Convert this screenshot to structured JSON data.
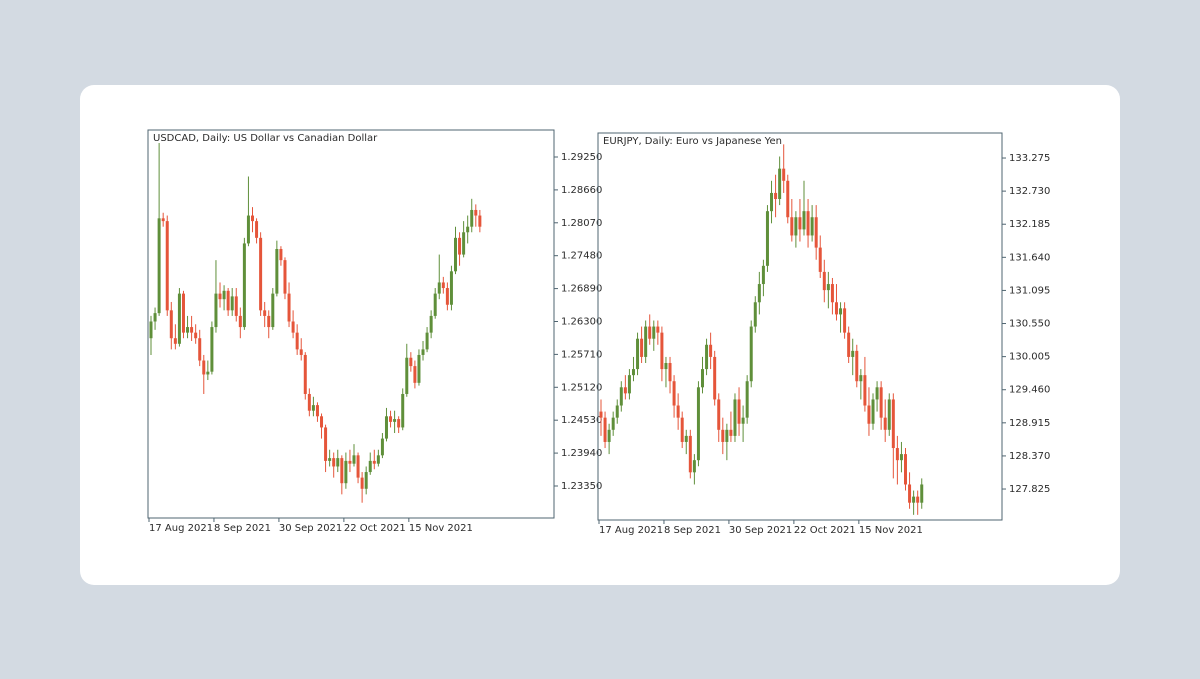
{
  "chart_data": [
    {
      "type": "candlestick",
      "title": "USDCAD, Daily:  US Dollar vs Canadian Dollar",
      "categories": [
        "17 Aug 2021",
        null,
        null,
        null,
        null,
        null,
        null,
        null,
        null,
        null,
        null,
        null,
        null,
        null,
        null,
        null,
        "8 Sep 2021",
        null,
        null,
        null,
        null,
        null,
        null,
        null,
        null,
        null,
        null,
        null,
        null,
        null,
        null,
        null,
        "30 Sep 2021",
        null,
        null,
        null,
        null,
        null,
        null,
        null,
        null,
        null,
        null,
        null,
        null,
        null,
        null,
        null,
        "22 Oct 2021",
        null,
        null,
        null,
        null,
        null,
        null,
        null,
        null,
        null,
        null,
        null,
        null,
        null,
        null,
        null,
        "15 Nov 2021",
        null,
        null,
        null,
        null,
        null,
        null,
        null,
        null,
        null,
        null,
        null,
        null,
        null,
        null,
        null,
        null,
        null
      ],
      "candles": [
        [
          1.26,
          1.264,
          1.257,
          1.263
        ],
        [
          1.263,
          1.2655,
          1.2615,
          1.2645
        ],
        [
          1.2645,
          1.295,
          1.264,
          1.2815
        ],
        [
          1.2815,
          1.2825,
          1.28,
          1.281
        ],
        [
          1.281,
          1.282,
          1.264,
          1.265
        ],
        [
          1.265,
          1.2665,
          1.258,
          1.26
        ],
        [
          1.26,
          1.2625,
          1.258,
          1.259
        ],
        [
          1.259,
          1.269,
          1.2585,
          1.268
        ],
        [
          1.268,
          1.2685,
          1.26,
          1.261
        ],
        [
          1.261,
          1.264,
          1.26,
          1.262
        ],
        [
          1.262,
          1.264,
          1.2595,
          1.261
        ],
        [
          1.261,
          1.2625,
          1.259,
          1.26
        ],
        [
          1.26,
          1.2615,
          1.255,
          1.256
        ],
        [
          1.256,
          1.257,
          1.25,
          1.2535
        ],
        [
          1.2535,
          1.256,
          1.2525,
          1.254
        ],
        [
          1.254,
          1.263,
          1.2535,
          1.262
        ],
        [
          1.262,
          1.274,
          1.261,
          1.268
        ],
        [
          1.268,
          1.27,
          1.2655,
          1.267
        ],
        [
          1.267,
          1.2695,
          1.265,
          1.2685
        ],
        [
          1.2685,
          1.269,
          1.264,
          1.265
        ],
        [
          1.265,
          1.269,
          1.264,
          1.2675
        ],
        [
          1.2675,
          1.269,
          1.263,
          1.264
        ],
        [
          1.264,
          1.2655,
          1.26,
          1.262
        ],
        [
          1.262,
          1.278,
          1.2615,
          1.277
        ],
        [
          1.277,
          1.289,
          1.2765,
          1.282
        ],
        [
          1.282,
          1.2835,
          1.279,
          1.281
        ],
        [
          1.281,
          1.2815,
          1.277,
          1.278
        ],
        [
          1.278,
          1.279,
          1.264,
          1.265
        ],
        [
          1.265,
          1.2665,
          1.262,
          1.264
        ],
        [
          1.264,
          1.265,
          1.26,
          1.262
        ],
        [
          1.262,
          1.269,
          1.2615,
          1.268
        ],
        [
          1.268,
          1.2775,
          1.2675,
          1.276
        ],
        [
          1.276,
          1.2765,
          1.273,
          1.274
        ],
        [
          1.274,
          1.2745,
          1.267,
          1.268
        ],
        [
          1.268,
          1.27,
          1.262,
          1.263
        ],
        [
          1.263,
          1.265,
          1.26,
          1.261
        ],
        [
          1.261,
          1.2625,
          1.257,
          1.258
        ],
        [
          1.258,
          1.26,
          1.256,
          1.257
        ],
        [
          1.257,
          1.2575,
          1.249,
          1.25
        ],
        [
          1.25,
          1.251,
          1.246,
          1.247
        ],
        [
          1.247,
          1.2495,
          1.246,
          1.248
        ],
        [
          1.248,
          1.2485,
          1.245,
          1.246
        ],
        [
          1.246,
          1.2465,
          1.242,
          1.244
        ],
        [
          1.244,
          1.2445,
          1.236,
          1.238
        ],
        [
          1.238,
          1.24,
          1.237,
          1.2385
        ],
        [
          1.2385,
          1.2395,
          1.235,
          1.237
        ],
        [
          1.237,
          1.24,
          1.236,
          1.2385
        ],
        [
          1.2385,
          1.239,
          1.232,
          1.234
        ],
        [
          1.234,
          1.2395,
          1.233,
          1.238
        ],
        [
          1.238,
          1.24,
          1.236,
          1.2375
        ],
        [
          1.2375,
          1.241,
          1.237,
          1.239
        ],
        [
          1.239,
          1.2395,
          1.234,
          1.235
        ],
        [
          1.235,
          1.236,
          1.2305,
          1.233
        ],
        [
          1.233,
          1.237,
          1.232,
          1.236
        ],
        [
          1.236,
          1.2395,
          1.2355,
          1.238
        ],
        [
          1.238,
          1.24,
          1.2365,
          1.2375
        ],
        [
          1.2375,
          1.24,
          1.237,
          1.239
        ],
        [
          1.239,
          1.243,
          1.2385,
          1.242
        ],
        [
          1.242,
          1.2475,
          1.2415,
          1.246
        ],
        [
          1.246,
          1.247,
          1.244,
          1.245
        ],
        [
          1.245,
          1.247,
          1.243,
          1.2455
        ],
        [
          1.2455,
          1.246,
          1.243,
          1.244
        ],
        [
          1.244,
          1.251,
          1.2435,
          1.25
        ],
        [
          1.25,
          1.259,
          1.2495,
          1.2565
        ],
        [
          1.2565,
          1.2575,
          1.254,
          1.255
        ],
        [
          1.255,
          1.256,
          1.251,
          1.252
        ],
        [
          1.252,
          1.258,
          1.2515,
          1.257
        ],
        [
          1.257,
          1.2595,
          1.256,
          1.258
        ],
        [
          1.258,
          1.262,
          1.2575,
          1.261
        ],
        [
          1.261,
          1.265,
          1.26,
          1.264
        ],
        [
          1.264,
          1.269,
          1.2635,
          1.268
        ],
        [
          1.268,
          1.275,
          1.267,
          1.27
        ],
        [
          1.27,
          1.271,
          1.268,
          1.269
        ],
        [
          1.269,
          1.27,
          1.265,
          1.266
        ],
        [
          1.266,
          1.273,
          1.265,
          1.272
        ],
        [
          1.272,
          1.28,
          1.2715,
          1.278
        ],
        [
          1.278,
          1.279,
          1.273,
          1.275
        ],
        [
          1.275,
          1.281,
          1.2745,
          1.279
        ],
        [
          1.279,
          1.282,
          1.277,
          1.28
        ],
        [
          1.28,
          1.285,
          1.279,
          1.283
        ],
        [
          1.283,
          1.284,
          1.28,
          1.282
        ],
        [
          1.282,
          1.283,
          1.279,
          1.28
        ]
      ],
      "ylim": [
        1.22776,
        1.29734
      ],
      "yticks": [
        {
          "value": 1.2925,
          "label": "1.29250"
        },
        {
          "value": 1.2866,
          "label": "1.28660"
        },
        {
          "value": 1.2807,
          "label": "1.28070"
        },
        {
          "value": 1.2748,
          "label": "1.27480"
        },
        {
          "value": 1.2689,
          "label": "1.26890"
        },
        {
          "value": 1.263,
          "label": "1.26300"
        },
        {
          "value": 1.2571,
          "label": "1.25710"
        },
        {
          "value": 1.2512,
          "label": "1.25120"
        },
        {
          "value": 1.2453,
          "label": "1.24530"
        },
        {
          "value": 1.2394,
          "label": "1.23940"
        },
        {
          "value": 1.2335,
          "label": "1.23350"
        }
      ],
      "up_color": "#5f8f3a",
      "down_color": "#e5553a"
    },
    {
      "type": "candlestick",
      "title": "EURJPY, Daily:  Euro vs Japanese Yen",
      "categories": [
        "17 Aug 2021",
        null,
        null,
        null,
        null,
        null,
        null,
        null,
        null,
        null,
        null,
        null,
        null,
        null,
        null,
        null,
        "8 Sep 2021",
        null,
        null,
        null,
        null,
        null,
        null,
        null,
        null,
        null,
        null,
        null,
        null,
        null,
        null,
        null,
        "30 Sep 2021",
        null,
        null,
        null,
        null,
        null,
        null,
        null,
        null,
        null,
        null,
        null,
        null,
        null,
        null,
        null,
        "22 Oct 2021",
        null,
        null,
        null,
        null,
        null,
        null,
        null,
        null,
        null,
        null,
        null,
        null,
        null,
        null,
        null,
        "15 Nov 2021",
        null,
        null,
        null,
        null,
        null,
        null,
        null,
        null,
        null,
        null,
        null,
        null,
        null,
        null,
        null
      ],
      "candles": [
        [
          129.1,
          129.3,
          128.7,
          129.0
        ],
        [
          129.0,
          129.1,
          128.5,
          128.6
        ],
        [
          128.6,
          128.9,
          128.4,
          128.8
        ],
        [
          128.8,
          129.1,
          128.7,
          129.0
        ],
        [
          129.0,
          129.3,
          128.9,
          129.2
        ],
        [
          129.2,
          129.6,
          129.1,
          129.5
        ],
        [
          129.5,
          129.7,
          129.3,
          129.4
        ],
        [
          129.4,
          129.8,
          129.3,
          129.7
        ],
        [
          129.7,
          130.0,
          129.6,
          129.8
        ],
        [
          129.8,
          130.4,
          129.7,
          130.3
        ],
        [
          130.3,
          130.5,
          129.9,
          130.0
        ],
        [
          130.0,
          130.6,
          129.9,
          130.5
        ],
        [
          130.5,
          130.7,
          130.2,
          130.3
        ],
        [
          130.3,
          130.6,
          130.1,
          130.5
        ],
        [
          130.5,
          130.6,
          130.2,
          130.4
        ],
        [
          130.4,
          130.5,
          129.6,
          129.8
        ],
        [
          129.8,
          130.0,
          129.5,
          129.9
        ],
        [
          129.9,
          130.0,
          129.4,
          129.6
        ],
        [
          129.6,
          129.7,
          129.0,
          129.2
        ],
        [
          129.2,
          129.4,
          128.8,
          129.0
        ],
        [
          129.0,
          129.1,
          128.5,
          128.6
        ],
        [
          128.6,
          128.8,
          128.4,
          128.7
        ],
        [
          128.7,
          128.8,
          128.0,
          128.1
        ],
        [
          128.1,
          128.4,
          127.9,
          128.3
        ],
        [
          128.3,
          129.6,
          128.2,
          129.5
        ],
        [
          129.5,
          130.0,
          129.4,
          129.8
        ],
        [
          129.8,
          130.3,
          129.7,
          130.2
        ],
        [
          130.2,
          130.4,
          129.8,
          130.0
        ],
        [
          130.0,
          130.1,
          129.2,
          129.3
        ],
        [
          129.3,
          129.4,
          128.6,
          128.8
        ],
        [
          128.8,
          129.0,
          128.4,
          128.6
        ],
        [
          128.6,
          128.9,
          128.3,
          128.8
        ],
        [
          128.8,
          129.1,
          128.6,
          128.7
        ],
        [
          128.7,
          129.4,
          128.6,
          129.3
        ],
        [
          129.3,
          129.5,
          128.7,
          128.9
        ],
        [
          128.9,
          129.2,
          128.6,
          129.0
        ],
        [
          129.0,
          129.7,
          128.9,
          129.6
        ],
        [
          129.6,
          130.6,
          129.5,
          130.5
        ],
        [
          130.5,
          131.0,
          130.4,
          130.9
        ],
        [
          130.9,
          131.4,
          130.7,
          131.2
        ],
        [
          131.2,
          131.6,
          131.0,
          131.5
        ],
        [
          131.5,
          132.5,
          131.4,
          132.4
        ],
        [
          132.4,
          132.9,
          132.2,
          132.7
        ],
        [
          132.7,
          133.0,
          132.3,
          132.6
        ],
        [
          132.6,
          133.3,
          132.5,
          133.1
        ],
        [
          133.1,
          133.5,
          132.7,
          132.9
        ],
        [
          132.9,
          133.0,
          132.2,
          132.3
        ],
        [
          132.3,
          132.6,
          131.9,
          132.0
        ],
        [
          132.0,
          132.4,
          131.8,
          132.3
        ],
        [
          132.3,
          132.6,
          131.9,
          132.1
        ],
        [
          132.1,
          132.9,
          132.0,
          132.4
        ],
        [
          132.4,
          132.6,
          131.8,
          132.0
        ],
        [
          132.0,
          132.5,
          131.9,
          132.3
        ],
        [
          132.3,
          132.5,
          131.6,
          131.8
        ],
        [
          131.8,
          132.0,
          131.3,
          131.4
        ],
        [
          131.4,
          131.6,
          130.9,
          131.1
        ],
        [
          131.1,
          131.4,
          130.8,
          131.2
        ],
        [
          131.2,
          131.3,
          130.7,
          130.9
        ],
        [
          130.9,
          131.2,
          130.6,
          130.7
        ],
        [
          130.7,
          130.9,
          130.4,
          130.8
        ],
        [
          130.8,
          130.9,
          130.3,
          130.4
        ],
        [
          130.4,
          130.5,
          129.9,
          130.0
        ],
        [
          130.0,
          130.3,
          129.7,
          130.1
        ],
        [
          130.1,
          130.2,
          129.5,
          129.6
        ],
        [
          129.6,
          129.8,
          129.3,
          129.7
        ],
        [
          129.7,
          130.0,
          129.1,
          129.2
        ],
        [
          129.2,
          129.5,
          128.7,
          128.9
        ],
        [
          128.9,
          129.4,
          128.8,
          129.3
        ],
        [
          129.3,
          129.6,
          129.1,
          129.5
        ],
        [
          129.5,
          129.6,
          128.8,
          129.0
        ],
        [
          129.0,
          129.3,
          128.6,
          128.8
        ],
        [
          128.8,
          129.4,
          128.7,
          129.3
        ],
        [
          129.3,
          129.4,
          128.0,
          128.5
        ],
        [
          128.5,
          128.7,
          127.9,
          128.3
        ],
        [
          128.3,
          128.6,
          128.1,
          128.4
        ],
        [
          128.4,
          128.5,
          127.8,
          127.9
        ],
        [
          127.9,
          128.1,
          127.5,
          127.6
        ],
        [
          127.6,
          127.8,
          127.4,
          127.7
        ],
        [
          127.7,
          127.8,
          127.4,
          127.6
        ],
        [
          127.6,
          128.0,
          127.5,
          127.9
        ]
      ],
      "ylim": [
        127.315,
        133.687
      ],
      "yticks": [
        133.275,
        {
          "value": 132.73,
          "label": "132.730"
        },
        132.185,
        {
          "value": 131.64,
          "label": "131.640"
        },
        131.095,
        {
          "value": 130.55,
          "label": "130.550"
        },
        130.005,
        {
          "value": 129.46,
          "label": "129.460"
        },
        128.915,
        {
          "value": 128.37,
          "label": "128.370"
        },
        127.825
      ],
      "up_color": "#5f8f3a",
      "down_color": "#e5553a"
    }
  ]
}
